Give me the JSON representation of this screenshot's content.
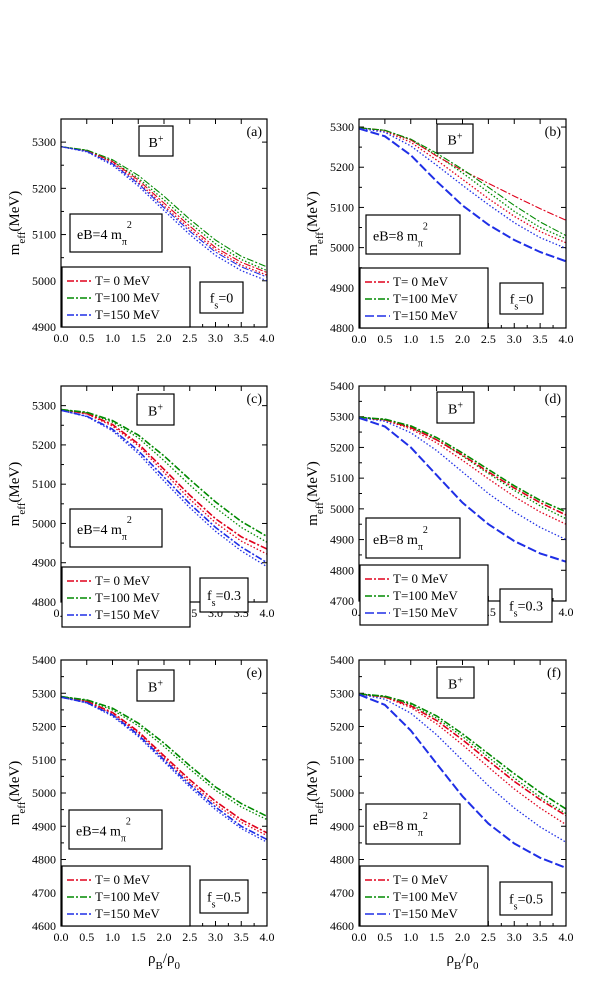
{
  "figure": {
    "ylabel_main": "m",
    "ylabel_sub": "eff",
    "ylabel_unit": "(MeV)",
    "xlabel_rho": "ρ",
    "xlabel_sub_B": "B",
    "xlabel_slash": "/ρ",
    "xlabel_sub_0": "0",
    "meson": "B",
    "meson_charge": "+",
    "legend": [
      {
        "label": "T= 0 MeV",
        "color": "#e0001b",
        "dash": "7,2,2,2"
      },
      {
        "label": "T=100 MeV",
        "color": "#008a00",
        "dash": "7,2,2,2"
      },
      {
        "label": "T=150 MeV",
        "color": "#1f2fe6",
        "dash": "9,3"
      }
    ],
    "eB_labels": [
      "eB=4 m",
      "eB=8 m"
    ],
    "eB_sub": "π",
    "eB_sup": "2",
    "fs_prefix": "f",
    "fs_sub": "s"
  },
  "chart_data": [
    {
      "id": "a",
      "panel_label": "(a)",
      "type": "line",
      "eB": "eB=4 m",
      "fs": "=0",
      "xlim": [
        0,
        4
      ],
      "ylim": [
        4900,
        5350
      ],
      "xticks": [
        "0.0",
        "0.5",
        "1.0",
        "1.5",
        "2.0",
        "2.5",
        "3.0",
        "3.5",
        "4.0"
      ],
      "yticks": [
        4900,
        5000,
        5100,
        5200,
        5300
      ],
      "x": [
        0,
        0.5,
        1.0,
        1.5,
        2.0,
        2.5,
        3.0,
        3.5,
        4.0
      ],
      "series": [
        {
          "name": "T= 0 MeV",
          "style": "dashdot",
          "values": [
            5290,
            5282,
            5258,
            5218,
            5168,
            5118,
            5072,
            5040,
            5018
          ]
        },
        {
          "name": "T=100 MeV",
          "style": "dashdot",
          "values": [
            5290,
            5283,
            5262,
            5228,
            5183,
            5133,
            5088,
            5053,
            5030
          ]
        },
        {
          "name": "T=150 MeV",
          "style": "dashdot",
          "values": [
            5290,
            5280,
            5253,
            5210,
            5158,
            5107,
            5062,
            5030,
            5008
          ]
        }
      ],
      "dotted": [
        {
          "values": [
            5290,
            5281,
            5255,
            5213,
            5162,
            5112,
            5067,
            5034,
            5012
          ]
        },
        {
          "values": [
            5290,
            5282,
            5259,
            5222,
            5175,
            5125,
            5080,
            5046,
            5022
          ]
        },
        {
          "values": [
            5290,
            5279,
            5250,
            5205,
            5152,
            5100,
            5055,
            5022,
            5000
          ]
        }
      ]
    },
    {
      "id": "b",
      "panel_label": "(b)",
      "type": "line",
      "eB": "eB=8 m",
      "fs": "=0",
      "xlim": [
        0,
        4
      ],
      "ylim": [
        4800,
        5320
      ],
      "xticks": [
        "0.0",
        "0.5",
        "1.0",
        "1.5",
        "2.0",
        "2.5",
        "3.0",
        "3.5",
        "4.0"
      ],
      "yticks": [
        4800,
        4900,
        5000,
        5100,
        5200,
        5300
      ],
      "x": [
        0,
        0.5,
        1.0,
        1.5,
        2.0,
        2.5,
        3.0,
        3.5,
        4.0
      ],
      "series": [
        {
          "name": "T= 0 MeV",
          "style": "dashdot",
          "values": [
            5298,
            5292,
            5268,
            5228,
            5192,
            5160,
            5128,
            5097,
            5068
          ]
        },
        {
          "name": "T=100 MeV",
          "style": "dashdot",
          "values": [
            5298,
            5292,
            5270,
            5235,
            5195,
            5150,
            5105,
            5064,
            5030
          ]
        },
        {
          "name": "T=150 MeV",
          "style": "dashed",
          "values": [
            5296,
            5277,
            5230,
            5165,
            5105,
            5057,
            5019,
            4989,
            4966
          ]
        }
      ],
      "dotted": [
        {
          "values": [
            5298,
            5290,
            5262,
            5218,
            5170,
            5122,
            5078,
            5040,
            5012
          ]
        },
        {
          "values": [
            5298,
            5292,
            5268,
            5230,
            5186,
            5138,
            5090,
            5050,
            5022
          ]
        },
        {
          "values": [
            5297,
            5287,
            5253,
            5205,
            5155,
            5107,
            5062,
            5025,
            4998
          ]
        }
      ]
    },
    {
      "id": "c",
      "panel_label": "(c)",
      "type": "line",
      "eB": "eB=4 m",
      "fs": "=0.3",
      "xlim": [
        0,
        4
      ],
      "ylim": [
        4800,
        5350
      ],
      "xticks": [
        "0.0",
        "0.5",
        "1.0",
        "1.5",
        "2.0",
        "2.5",
        "3.0",
        "3.5",
        "4.0"
      ],
      "yticks": [
        4800,
        4900,
        5000,
        5100,
        5200,
        5300
      ],
      "x": [
        0,
        0.5,
        1.0,
        1.5,
        2.0,
        2.5,
        3.0,
        3.5,
        4.0
      ],
      "series": [
        {
          "name": "T= 0 MeV",
          "style": "dashdot",
          "values": [
            5290,
            5280,
            5252,
            5203,
            5138,
            5072,
            5012,
            4966,
            4935
          ]
        },
        {
          "name": "T=100 MeV",
          "style": "dashdot",
          "values": [
            5290,
            5283,
            5262,
            5225,
            5172,
            5112,
            5055,
            5005,
            4967
          ]
        },
        {
          "name": "T=150 MeV",
          "style": "dashdot",
          "values": [
            5288,
            5273,
            5240,
            5185,
            5118,
            5050,
            4990,
            4940,
            4900
          ]
        }
      ],
      "dotted": [
        {
          "values": [
            5290,
            5279,
            5248,
            5198,
            5130,
            5062,
            5002,
            4955,
            4922
          ]
        },
        {
          "values": [
            5290,
            5282,
            5258,
            5218,
            5160,
            5098,
            5040,
            4990,
            4952
          ]
        },
        {
          "values": [
            5288,
            5272,
            5236,
            5178,
            5108,
            5040,
            4980,
            4930,
            4890
          ]
        }
      ]
    },
    {
      "id": "d",
      "panel_label": "(d)",
      "type": "line",
      "eB": "eB=8 m",
      "fs": "=0.3",
      "xlim": [
        0,
        4
      ],
      "ylim": [
        4700,
        5400
      ],
      "xticks": [
        "0.0",
        "0.5",
        "1.0",
        "1.5",
        "2.0",
        "2.5",
        "3.0",
        "3.5",
        "4.0"
      ],
      "yticks": [
        4700,
        4800,
        4900,
        5000,
        5100,
        5200,
        5300,
        5400
      ],
      "x": [
        0,
        0.5,
        1.0,
        1.5,
        2.0,
        2.5,
        3.0,
        3.5,
        4.0
      ],
      "series": [
        {
          "name": "T= 0 MeV",
          "style": "dashdot",
          "values": [
            5298,
            5290,
            5265,
            5225,
            5175,
            5120,
            5068,
            5020,
            4980
          ]
        },
        {
          "name": "T=100 MeV",
          "style": "dashdot",
          "values": [
            5298,
            5292,
            5270,
            5232,
            5182,
            5128,
            5075,
            5028,
            4990
          ]
        },
        {
          "name": "T=150 MeV",
          "style": "dashed",
          "values": [
            5296,
            5268,
            5200,
            5110,
            5020,
            4950,
            4895,
            4855,
            4828
          ]
        }
      ],
      "dotted": [
        {
          "values": [
            5298,
            5289,
            5260,
            5215,
            5158,
            5098,
            5040,
            4990,
            4950
          ]
        },
        {
          "values": [
            5298,
            5291,
            5266,
            5225,
            5172,
            5115,
            5060,
            5010,
            4968
          ]
        },
        {
          "values": [
            5297,
            5285,
            5248,
            5190,
            5120,
            5050,
            4990,
            4940,
            4900
          ]
        }
      ]
    },
    {
      "id": "e",
      "panel_label": "(e)",
      "type": "line",
      "eB": "eB=4 m",
      "fs": "=0.5",
      "xlim": [
        0,
        4
      ],
      "ylim": [
        4600,
        5400
      ],
      "xticks": [
        "0.0",
        "0.5",
        "1.0",
        "1.5",
        "2.0",
        "2.5",
        "3.0",
        "3.5",
        "4.0"
      ],
      "yticks": [
        4600,
        4700,
        4800,
        4900,
        5000,
        5100,
        5200,
        5300,
        5400
      ],
      "x": [
        0,
        0.5,
        1.0,
        1.5,
        2.0,
        2.5,
        3.0,
        3.5,
        4.0
      ],
      "series": [
        {
          "name": "T= 0 MeV",
          "style": "dashdot",
          "values": [
            5290,
            5276,
            5242,
            5185,
            5112,
            5040,
            4975,
            4920,
            4880
          ]
        },
        {
          "name": "T=100 MeV",
          "style": "dashdot",
          "values": [
            5290,
            5280,
            5255,
            5210,
            5150,
            5082,
            5018,
            4968,
            4930
          ]
        },
        {
          "name": "T=150 MeV",
          "style": "dashdot",
          "values": [
            5288,
            5272,
            5235,
            5175,
            5100,
            5025,
            4958,
            4900,
            4860
          ]
        }
      ],
      "dotted": [
        {
          "values": [
            5290,
            5275,
            5238,
            5180,
            5106,
            5032,
            4966,
            4912,
            4872
          ]
        },
        {
          "values": [
            5290,
            5279,
            5250,
            5202,
            5140,
            5072,
            5008,
            4958,
            4920
          ]
        },
        {
          "values": [
            5288,
            5271,
            5231,
            5170,
            5094,
            5018,
            4950,
            4893,
            4852
          ]
        }
      ]
    },
    {
      "id": "f",
      "panel_label": "(f)",
      "type": "line",
      "eB": "eB=8 m",
      "fs": "=0.5",
      "xlim": [
        0,
        4
      ],
      "ylim": [
        4600,
        5400
      ],
      "xticks": [
        "0.0",
        "0.5",
        "1.0",
        "1.5",
        "2.0",
        "2.5",
        "3.0",
        "3.5",
        "4.0"
      ],
      "yticks": [
        4600,
        4700,
        4800,
        4900,
        5000,
        5100,
        5200,
        5300,
        5400
      ],
      "x": [
        0,
        0.5,
        1.0,
        1.5,
        2.0,
        2.5,
        3.0,
        3.5,
        4.0
      ],
      "series": [
        {
          "name": "T= 0 MeV",
          "style": "dashdot",
          "values": [
            5298,
            5289,
            5262,
            5218,
            5160,
            5097,
            5035,
            4980,
            4932
          ]
        },
        {
          "name": "T=100 MeV",
          "style": "dashdot",
          "values": [
            5298,
            5291,
            5270,
            5232,
            5178,
            5118,
            5058,
            5002,
            4952
          ]
        },
        {
          "name": "T=150 MeV",
          "style": "dashed",
          "values": [
            5296,
            5265,
            5188,
            5088,
            4990,
            4908,
            4848,
            4805,
            4775
          ]
        }
      ],
      "dotted": [
        {
          "values": [
            5298,
            5288,
            5257,
            5208,
            5145,
            5078,
            5012,
            4955,
            4905
          ]
        },
        {
          "values": [
            5298,
            5290,
            5266,
            5225,
            5170,
            5108,
            5045,
            4988,
            4938
          ]
        },
        {
          "values": [
            5297,
            5282,
            5240,
            5175,
            5098,
            5022,
            4955,
            4898,
            4852
          ]
        }
      ]
    }
  ]
}
